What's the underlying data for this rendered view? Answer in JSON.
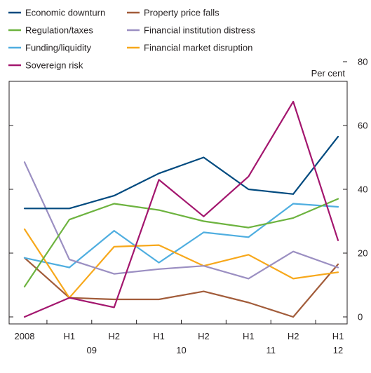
{
  "chart_data": {
    "type": "line",
    "unit_label": "Per cent",
    "categories": [
      "2008",
      "H1",
      "H2",
      "H1",
      "H2",
      "H1",
      "H2",
      "H1"
    ],
    "year_labels": [
      {
        "label": "09",
        "between": [
          1,
          2
        ]
      },
      {
        "label": "10",
        "between": [
          3,
          4
        ]
      },
      {
        "label": "11",
        "between": [
          5,
          6
        ]
      },
      {
        "label": "12",
        "at": 7
      }
    ],
    "ylim": [
      0,
      80
    ],
    "yticks": [
      0,
      20,
      40,
      60,
      80
    ],
    "grid": false,
    "legend_position": "top-left",
    "series": [
      {
        "name": "Economic downturn",
        "color": "#004a7f",
        "values": [
          34,
          34,
          38,
          45,
          50,
          40,
          38.5,
          56.5
        ]
      },
      {
        "name": "Regulation/taxes",
        "color": "#6db33f",
        "values": [
          9.5,
          30.5,
          35.5,
          33.5,
          30,
          28,
          31,
          37
        ]
      },
      {
        "name": "Funding/liquidity",
        "color": "#4faee0",
        "values": [
          18.5,
          15.5,
          27,
          17,
          26.5,
          25,
          35.5,
          34.5
        ]
      },
      {
        "name": "Sovereign risk",
        "color": "#a3166e",
        "values": [
          0,
          6,
          3,
          43,
          31.5,
          44,
          67.5,
          24
        ]
      },
      {
        "name": "Property price falls",
        "color": "#a25c3a",
        "values": [
          18.5,
          6,
          5.5,
          5.5,
          8,
          4.5,
          0,
          16.5
        ]
      },
      {
        "name": "Financial institution distress",
        "color": "#9b8fc2",
        "values": [
          48.5,
          18,
          13.5,
          15,
          16,
          12,
          20.5,
          15.5
        ]
      },
      {
        "name": "Financial market disruption",
        "color": "#f7a81b",
        "values": [
          27.5,
          6,
          22,
          22.5,
          16,
          19.5,
          12,
          14
        ]
      }
    ]
  }
}
